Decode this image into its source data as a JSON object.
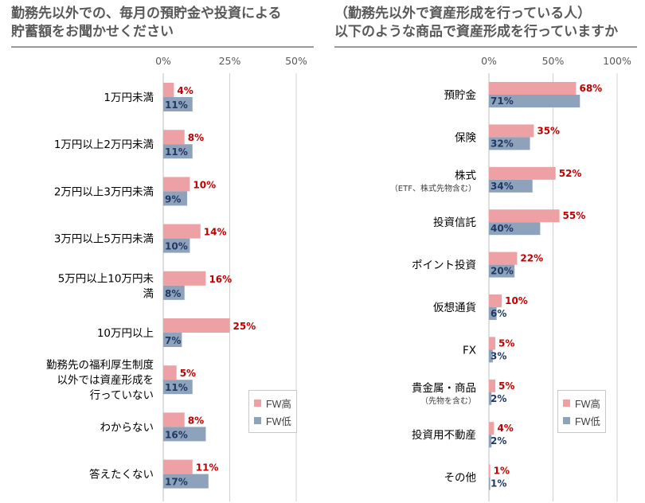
{
  "colors": {
    "fw_high": "#eda1a5",
    "fw_low": "#8ea3bb",
    "fw_high_label": "#c00000",
    "fw_low_label": "#1f3864",
    "gridline": "#d0d0d0"
  },
  "legend": {
    "high": "FW高",
    "low": "FW低"
  },
  "chart_data": [
    {
      "type": "bar",
      "orientation": "horizontal",
      "title_lines": [
        "勤務先以外での、毎月の預貯金や投資による",
        "貯蓄額をお聞かせください"
      ],
      "xlim": [
        0,
        50
      ],
      "ticks": [
        "0%",
        "25%",
        "50%"
      ],
      "tick_values": [
        0,
        25,
        50
      ],
      "legend_position": "bottom-right",
      "categories": [
        [
          "1万円未満"
        ],
        [
          "1万円以上2万円未満"
        ],
        [
          "2万円以上3万円未満"
        ],
        [
          "3万円以上5万円未満"
        ],
        [
          "5万円以上10万円未",
          "満"
        ],
        [
          "10万円以上"
        ],
        [
          "勤務先の福利厚生制度",
          "以外では資産形成を",
          "行っていない"
        ],
        [
          "わからない"
        ],
        [
          "答えたくない"
        ]
      ],
      "series": [
        {
          "name": "FW高",
          "values": [
            4,
            8,
            10,
            14,
            16,
            25,
            5,
            8,
            11
          ],
          "labels": [
            "4%",
            "8%",
            "10%",
            "14%",
            "16%",
            "25%",
            "5%",
            "8%",
            "11%"
          ]
        },
        {
          "name": "FW低",
          "values": [
            11,
            11,
            9,
            10,
            8,
            7,
            11,
            16,
            17
          ],
          "labels": [
            "11%",
            "11%",
            "9%",
            "10%",
            "8%",
            "7%",
            "11%",
            "16%",
            "17%"
          ]
        }
      ]
    },
    {
      "type": "bar",
      "orientation": "horizontal",
      "title_lines": [
        "（勤務先以外で資産形成を行っている人）",
        "以下のような商品で資産形成を行っていますか"
      ],
      "xlim": [
        0,
        100
      ],
      "ticks": [
        "0%",
        "50%",
        "100%"
      ],
      "tick_values": [
        0,
        50,
        100
      ],
      "legend_position": "bottom-right",
      "categories": [
        [
          "預貯金"
        ],
        [
          "保険"
        ],
        [
          "株式",
          "（ETF、株式先物含む）"
        ],
        [
          "投資信託"
        ],
        [
          "ポイント投資"
        ],
        [
          "仮想通貨"
        ],
        [
          "FX"
        ],
        [
          "貴金属・商品",
          "（先物を含む）"
        ],
        [
          "投資用不動産"
        ],
        [
          "その他"
        ]
      ],
      "series": [
        {
          "name": "FW高",
          "values": [
            68,
            35,
            52,
            55,
            22,
            10,
            5,
            5,
            4,
            1
          ],
          "labels": [
            "68%",
            "35%",
            "52%",
            "55%",
            "22%",
            "10%",
            "5%",
            "5%",
            "4%",
            "1%"
          ]
        },
        {
          "name": "FW低",
          "values": [
            71,
            32,
            34,
            40,
            20,
            6,
            3,
            2,
            2,
            1
          ],
          "labels": [
            "71%",
            "32%",
            "34%",
            "40%",
            "20%",
            "6%",
            "3%",
            "2%",
            "2%",
            "1%"
          ]
        }
      ]
    }
  ]
}
